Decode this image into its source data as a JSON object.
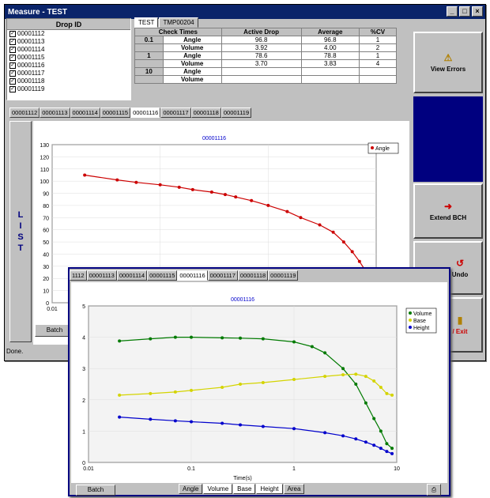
{
  "window": {
    "title": "Measure - TEST",
    "status": "Done."
  },
  "drop_panel": {
    "header": "Drop ID",
    "items": [
      "00001112",
      "00001113",
      "00001114",
      "00001115",
      "00001116",
      "00001117",
      "00001118",
      "00001119"
    ]
  },
  "check_tabs": [
    "TEST",
    "TMP00204"
  ],
  "check_table": {
    "headers": [
      "Check Times",
      "",
      "Active Drop",
      "Average",
      "%CV"
    ],
    "rows": [
      [
        "0.1",
        "Angle",
        "96.8",
        "96.8",
        "1"
      ],
      [
        "",
        "Volume",
        "3.92",
        "4.00",
        "2"
      ],
      [
        "1",
        "Angle",
        "78.6",
        "78.8",
        "1"
      ],
      [
        "",
        "Volume",
        "3.70",
        "3.83",
        "4"
      ],
      [
        "10",
        "Angle",
        "",
        "",
        ""
      ],
      [
        "",
        "Volume",
        "",
        "",
        ""
      ]
    ]
  },
  "side_buttons": {
    "view_errors": "View Errors",
    "extend": "Extend BCH",
    "undo": "Undo",
    "exit": "/ Exit"
  },
  "drop_tabs": [
    "00001112",
    "00001113",
    "00001114",
    "00001115",
    "00001116",
    "00001117",
    "00001118",
    "00001119"
  ],
  "drop_tabs_front": [
    "1112",
    "00001113",
    "00001114",
    "00001115",
    "00001116",
    "00001117",
    "00001118",
    "00001119"
  ],
  "list_letters": [
    "L",
    "I",
    "S",
    "T"
  ],
  "bottom_buttons": {
    "batch": "Batch"
  },
  "front_bottom": {
    "batch": "Batch",
    "tabs": [
      "Angle",
      "Volume",
      "Base",
      "Height",
      "Area"
    ]
  },
  "chart_data": [
    {
      "type": "scatter",
      "title": "00001116",
      "xlabel": "",
      "ylabel": "",
      "x_scale": "log",
      "xlim": [
        0.01,
        10
      ],
      "ylim": [
        0,
        130
      ],
      "yticks": [
        0,
        10,
        20,
        30,
        40,
        50,
        60,
        70,
        80,
        90,
        100,
        110,
        120,
        130
      ],
      "xtick_labels": [
        "0.01"
      ],
      "legend": "top-right",
      "series": [
        {
          "name": "Angle",
          "color": "#cc0000",
          "x": [
            0.02,
            0.04,
            0.06,
            0.1,
            0.15,
            0.2,
            0.3,
            0.4,
            0.5,
            0.7,
            1,
            1.5,
            2,
            3,
            4,
            5,
            6,
            7,
            8
          ],
          "y": [
            105,
            101,
            99,
            97,
            95,
            93,
            91,
            89,
            87,
            84,
            80,
            75,
            70,
            64,
            58,
            50,
            42,
            34,
            26
          ]
        }
      ]
    },
    {
      "type": "scatter",
      "title": "00001116",
      "xlabel": "Time(s)",
      "ylabel": "",
      "x_scale": "log",
      "xlim": [
        0.01,
        10
      ],
      "ylim": [
        0,
        5
      ],
      "yticks": [
        0,
        1,
        2,
        3,
        4,
        5
      ],
      "xtick_labels": [
        "0.01",
        "0.1",
        "1",
        "10"
      ],
      "legend": "top-right",
      "series": [
        {
          "name": "Volume",
          "color": "#007a00",
          "x": [
            0.02,
            0.04,
            0.07,
            0.1,
            0.2,
            0.3,
            0.5,
            1,
            1.5,
            2,
            3,
            4,
            5,
            6,
            7,
            8,
            9
          ],
          "y": [
            3.88,
            3.95,
            4.0,
            4.0,
            3.98,
            3.97,
            3.95,
            3.85,
            3.7,
            3.5,
            3.0,
            2.5,
            1.9,
            1.4,
            1.0,
            0.6,
            0.45
          ]
        },
        {
          "name": "Base",
          "color": "#d4d400",
          "x": [
            0.02,
            0.04,
            0.07,
            0.1,
            0.2,
            0.3,
            0.5,
            1,
            2,
            3,
            4,
            5,
            6,
            7,
            8,
            9
          ],
          "y": [
            2.15,
            2.2,
            2.25,
            2.3,
            2.4,
            2.5,
            2.55,
            2.65,
            2.75,
            2.8,
            2.82,
            2.75,
            2.6,
            2.4,
            2.2,
            2.15
          ]
        },
        {
          "name": "Height",
          "color": "#0000cc",
          "x": [
            0.02,
            0.04,
            0.07,
            0.1,
            0.2,
            0.3,
            0.5,
            1,
            2,
            3,
            4,
            5,
            6,
            7,
            8,
            9
          ],
          "y": [
            1.45,
            1.38,
            1.33,
            1.3,
            1.25,
            1.2,
            1.15,
            1.08,
            0.95,
            0.85,
            0.75,
            0.65,
            0.55,
            0.45,
            0.35,
            0.28
          ]
        }
      ]
    }
  ]
}
